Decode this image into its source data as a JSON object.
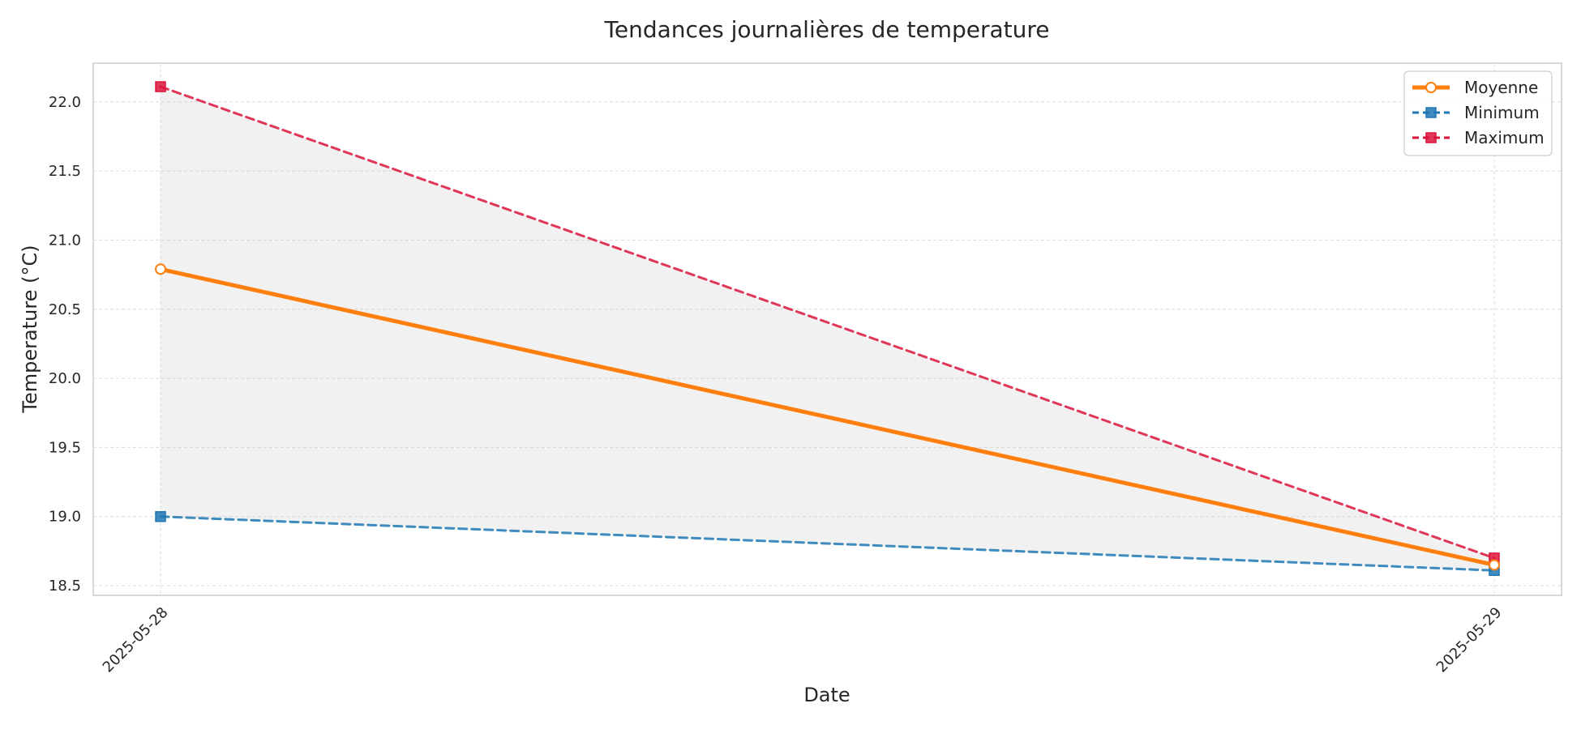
{
  "chart_data": {
    "type": "line",
    "title": "Tendances journalières de temperature",
    "xlabel": "Date",
    "ylabel": "Temperature (°C)",
    "categories": [
      "2025-05-28",
      "2025-05-29"
    ],
    "ylim": [
      18.43,
      22.28
    ],
    "yticks": [
      18.5,
      19.0,
      19.5,
      20.0,
      20.5,
      21.0,
      21.5,
      22.0
    ],
    "ytick_labels": [
      "18.5",
      "19.0",
      "19.5",
      "20.0",
      "20.5",
      "21.0",
      "21.5",
      "22.0"
    ],
    "grid": true,
    "legend_position": "top-right",
    "fill_between": {
      "lower": "Minimum",
      "upper": "Maximum",
      "color": "#bdbdbd"
    },
    "series": [
      {
        "name": "Moyenne",
        "values": [
          20.79,
          18.65
        ],
        "color": "#ff7f0e",
        "style": "solid",
        "marker": "circle-open"
      },
      {
        "name": "Minimum",
        "values": [
          19.0,
          18.61
        ],
        "color": "#1f77b4",
        "style": "dashed",
        "marker": "square"
      },
      {
        "name": "Maximum",
        "values": [
          22.11,
          18.7
        ],
        "color": "#dc143c",
        "style": "dashed",
        "marker": "square"
      }
    ]
  }
}
